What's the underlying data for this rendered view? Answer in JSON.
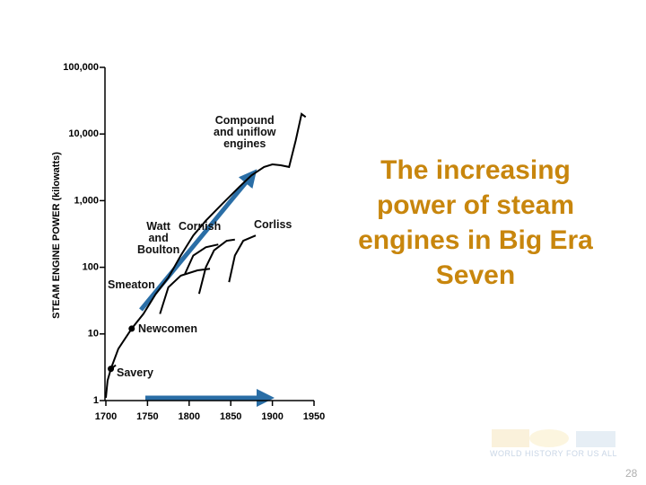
{
  "chart_data": {
    "type": "line",
    "y_label": "STEAM ENGINE POWER (kilowatts)",
    "xlim": [
      1700,
      1950
    ],
    "xticks": [
      1700,
      1750,
      1800,
      1850,
      1900,
      1950
    ],
    "ylim": [
      1,
      100000
    ],
    "log_scale": true,
    "yticks": [
      1,
      10,
      100,
      {
        "value": 1000,
        "label": "1,000"
      },
      {
        "value": 10000,
        "label": "10,000"
      },
      {
        "value": 100000,
        "label": "100,000"
      }
    ],
    "series": [
      {
        "color": "#000000",
        "x": [
          1700,
          1702,
          1706,
          1712
        ],
        "values": [
          1.1,
          2,
          3,
          3.4
        ]
      },
      {
        "color": "#000000",
        "x": [
          1706,
          1715,
          1731,
          1745,
          1760,
          1775,
          1790,
          1805,
          1820,
          1840,
          1860,
          1875,
          1890,
          1900,
          1910,
          1920,
          1928,
          1935,
          1940
        ],
        "values": [
          3,
          6,
          12,
          20,
          40,
          70,
          150,
          300,
          500,
          900,
          1600,
          2400,
          3200,
          3500,
          3400,
          3200,
          8000,
          20000,
          18000
        ]
      },
      {
        "color": "#000000",
        "x": [
          1765,
          1775,
          1790,
          1810,
          1825
        ],
        "values": [
          20,
          50,
          75,
          90,
          95
        ]
      },
      {
        "color": "#000000",
        "x": [
          1795,
          1805,
          1820,
          1835
        ],
        "values": [
          80,
          150,
          200,
          220
        ]
      },
      {
        "color": "#000000",
        "x": [
          1812,
          1820,
          1830,
          1845,
          1855
        ],
        "values": [
          40,
          100,
          180,
          250,
          260
        ]
      },
      {
        "color": "#000000",
        "x": [
          1848,
          1855,
          1865,
          1880
        ],
        "values": [
          60,
          150,
          250,
          300
        ]
      }
    ],
    "points": [
      {
        "x": 1706,
        "y": 3
      },
      {
        "x": 1731,
        "y": 12
      }
    ],
    "annotations": [
      "Compound\nand uniflow\nengines",
      "Watt\nand\nBoulton",
      "Cornish",
      "Corliss",
      "Smeaton",
      "Newcomen",
      "Savery"
    ]
  },
  "slide": {
    "title": "The increasing power of steam engines in Big Era Seven",
    "logo": "WORLD HISTORY FOR US ALL",
    "page_number": 28
  }
}
